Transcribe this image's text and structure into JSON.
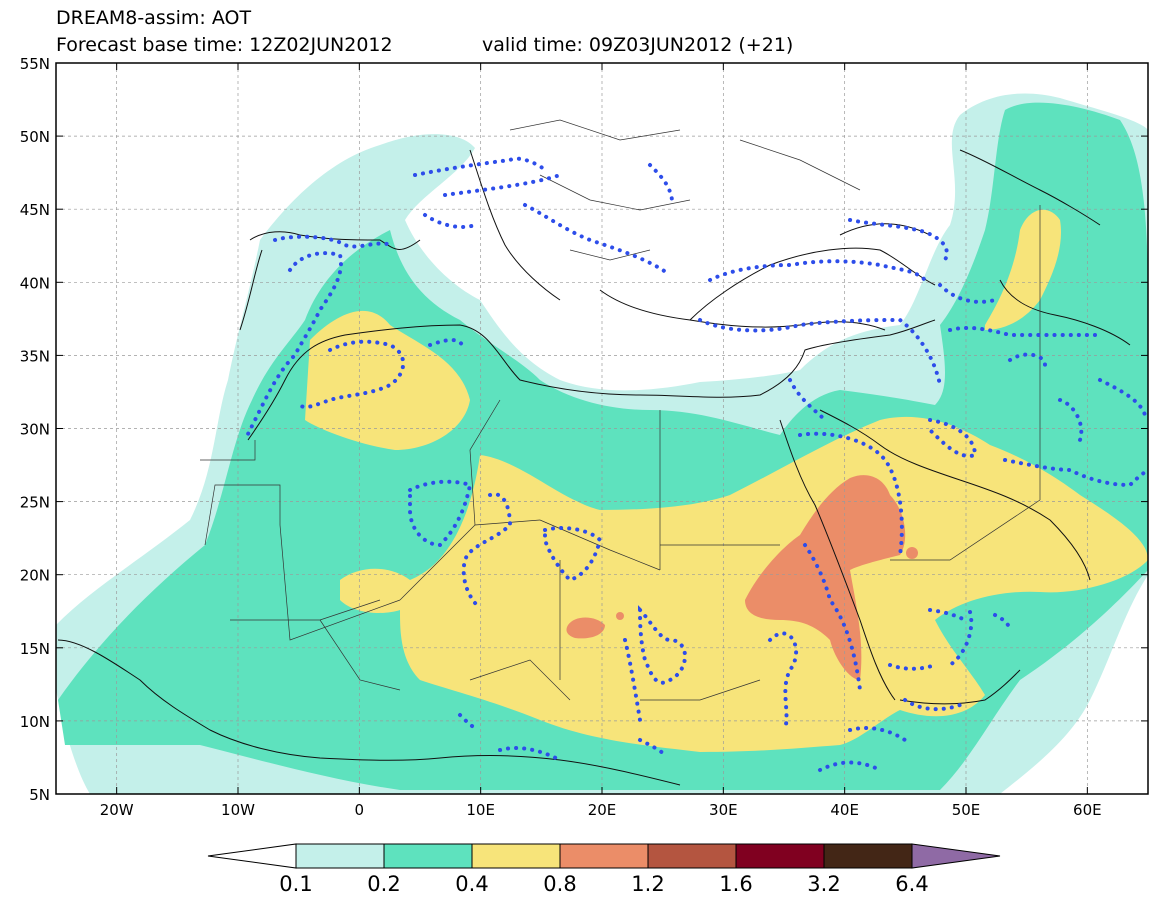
{
  "header": {
    "title": "DREAM8-assim: AOT",
    "base_time": "Forecast base time: 12Z02JUN2012",
    "valid_time": "valid time: 09Z03JUN2012 (+21)"
  },
  "map": {
    "lat_labels": [
      "55N",
      "50N",
      "45N",
      "40N",
      "35N",
      "30N",
      "25N",
      "20N",
      "15N",
      "10N",
      "5N"
    ],
    "lon_labels": [
      "20W",
      "10W",
      "0",
      "10E",
      "20E",
      "30E",
      "40E",
      "50E",
      "60E"
    ],
    "lat_values": [
      55,
      50,
      45,
      40,
      35,
      30,
      25,
      20,
      15,
      10,
      5
    ],
    "lon_values": [
      -20,
      -10,
      0,
      10,
      20,
      30,
      40,
      50,
      60
    ],
    "extent": {
      "lon": [
        -25,
        65
      ],
      "lat": [
        5,
        55
      ]
    },
    "gridlines": "dashed"
  },
  "colorbar": {
    "labels": [
      "0.1",
      "0.2",
      "0.4",
      "0.8",
      "1.2",
      "1.6",
      "3.2",
      "6.4"
    ],
    "colors": [
      "#ffffff",
      "#c4f0ea",
      "#5ee2be",
      "#f7e47a",
      "#eb8d68",
      "#b45540",
      "#800020",
      "#432616",
      "#8f6aa5"
    ]
  },
  "colors": {
    "level_01": "#c4f0ea",
    "level_02": "#5ee2be",
    "level_04": "#f7e47a",
    "level_08": "#eb8d68",
    "dotted_contour": "#2d4dea"
  }
}
